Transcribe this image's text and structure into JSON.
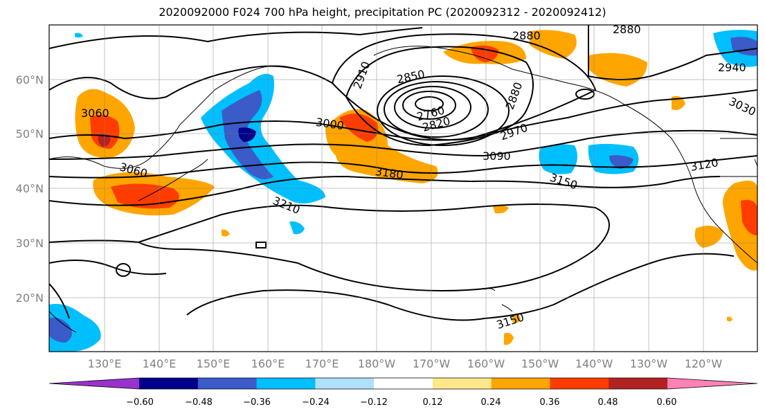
{
  "title": "2020092000 F024 700 hPa height, precipitation PC (2020092312 - 2020092412)",
  "map": {
    "lon_labels": [
      "130°E",
      "140°E",
      "150°E",
      "160°E",
      "170°E",
      "180°W",
      "170°W",
      "160°W",
      "150°W",
      "140°W",
      "130°W",
      "120°W"
    ],
    "lat_labels": [
      "60°N",
      "50°N",
      "40°N",
      "30°N",
      "20°N"
    ],
    "contour_labels": [
      "2880",
      "2880",
      "2940",
      "2910",
      "2850",
      "2760",
      "2820",
      "2880",
      "3060",
      "3000",
      "2970",
      "3030",
      "3060",
      "3090",
      "3180",
      "3120",
      "3150",
      "3210",
      "3150"
    ]
  },
  "colorbar": {
    "colors": [
      "#9932cc",
      "#00008b",
      "#3a5bc8",
      "#00bfff",
      "#b0e0ff",
      "#ffffff",
      "#ffe88a",
      "#ffa500",
      "#ff3c00",
      "#b22222",
      "#ff82b4"
    ],
    "tick_labels": [
      "−0.60",
      "−0.48",
      "−0.36",
      "−0.24",
      "−0.12",
      "0.12",
      "0.24",
      "0.36",
      "0.48",
      "0.60"
    ]
  }
}
